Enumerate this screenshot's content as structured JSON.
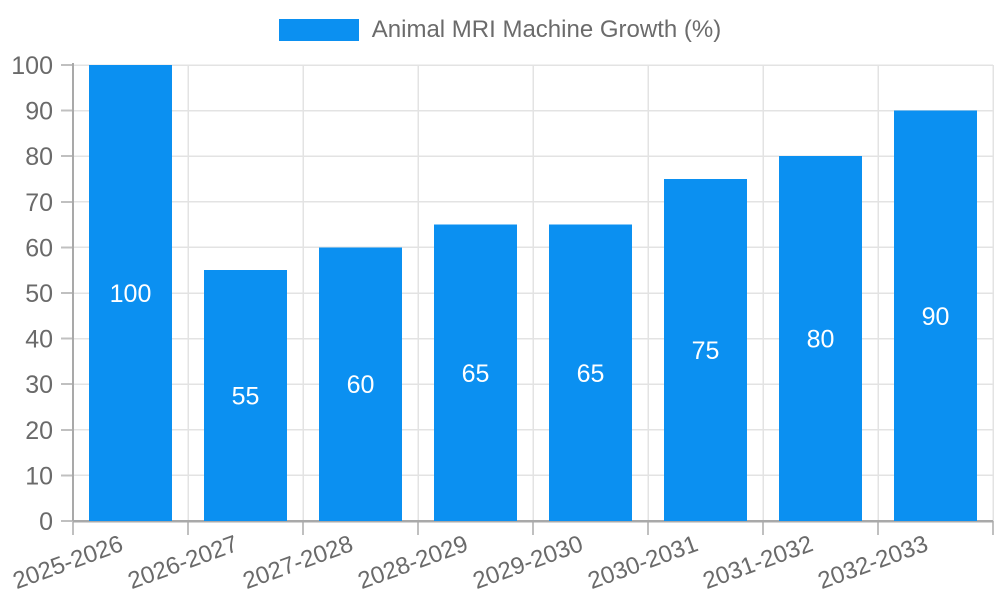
{
  "legend": {
    "label": "Animal MRI Machine Growth (%)"
  },
  "chart_data": {
    "type": "bar",
    "title": "Animal MRI Machine Growth (%)",
    "series_name": "Animal MRI Machine Growth (%)",
    "categories": [
      "2025-2026",
      "2026-2027",
      "2027-2028",
      "2028-2029",
      "2029-2030",
      "2030-2031",
      "2031-2032",
      "2032-2033"
    ],
    "values": [
      100,
      55,
      60,
      65,
      65,
      75,
      80,
      90
    ],
    "value_labels": [
      "100",
      "55",
      "60",
      "65",
      "65",
      "75",
      "80",
      "90"
    ],
    "xlabel": "",
    "ylabel": "",
    "ylim": [
      0,
      100
    ],
    "ytick_step": 10,
    "ytick_labels": [
      "0",
      "10",
      "20",
      "30",
      "40",
      "50",
      "60",
      "70",
      "80",
      "90",
      "100"
    ],
    "grid": true,
    "legend_position": "top",
    "colors": {
      "bar": "#0b90f1",
      "value_label": "#ffffff",
      "axis_line": "#a9a9a9",
      "tick_mark": "#c0c0c0",
      "gridline": "#e3e3e3",
      "axis_text": "#6a6a6a",
      "legend_text": "#6b6b6b"
    }
  }
}
